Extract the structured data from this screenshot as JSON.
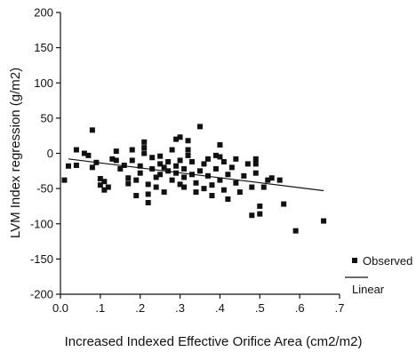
{
  "chart_data": {
    "type": "scatter",
    "xlabel": "Increased Indexed Effective Orifice Area (cm2/m2)",
    "ylabel": "LVM Index regression (g/m2)",
    "xlim": [
      0.0,
      0.7
    ],
    "ylim": [
      -200,
      200
    ],
    "x_ticks": [
      0.0,
      0.1,
      0.2,
      0.3,
      0.4,
      0.5,
      0.6,
      0.7
    ],
    "x_tick_labels": [
      "0.0",
      ".1",
      ".2",
      ".3",
      ".4",
      ".5",
      ".6",
      ".7"
    ],
    "y_ticks": [
      -200,
      -150,
      -100,
      -50,
      0,
      50,
      100,
      150,
      200
    ],
    "y_tick_labels": [
      "-200",
      "-150",
      "-100",
      "-50",
      "0",
      "50",
      "100",
      "150",
      "200"
    ],
    "legend": {
      "placement": "right",
      "entries": [
        "Observed",
        "Linear"
      ]
    },
    "series": [
      {
        "name": "Observed",
        "marker": "square",
        "points": [
          [
            0.01,
            -38
          ],
          [
            0.02,
            -18
          ],
          [
            0.04,
            5
          ],
          [
            0.04,
            -17
          ],
          [
            0.06,
            0
          ],
          [
            0.07,
            -3
          ],
          [
            0.08,
            -20
          ],
          [
            0.08,
            33
          ],
          [
            0.09,
            -13
          ],
          [
            0.1,
            -36
          ],
          [
            0.1,
            -45
          ],
          [
            0.11,
            -40
          ],
          [
            0.11,
            -52
          ],
          [
            0.12,
            -48
          ],
          [
            0.13,
            -8
          ],
          [
            0.14,
            3
          ],
          [
            0.14,
            -10
          ],
          [
            0.15,
            -22
          ],
          [
            0.16,
            -17
          ],
          [
            0.17,
            -35
          ],
          [
            0.17,
            -43
          ],
          [
            0.18,
            -10
          ],
          [
            0.18,
            5
          ],
          [
            0.19,
            -60
          ],
          [
            0.19,
            -38
          ],
          [
            0.2,
            -18
          ],
          [
            0.2,
            -28
          ],
          [
            0.21,
            0
          ],
          [
            0.21,
            8
          ],
          [
            0.21,
            16
          ],
          [
            0.22,
            -58
          ],
          [
            0.22,
            -70
          ],
          [
            0.22,
            -44
          ],
          [
            0.23,
            -22
          ],
          [
            0.23,
            -6
          ],
          [
            0.24,
            -48
          ],
          [
            0.24,
            -34
          ],
          [
            0.25,
            -15
          ],
          [
            0.25,
            -4
          ],
          [
            0.25,
            -30
          ],
          [
            0.26,
            -55
          ],
          [
            0.26,
            -20
          ],
          [
            0.27,
            -25
          ],
          [
            0.27,
            -12
          ],
          [
            0.28,
            5
          ],
          [
            0.28,
            -38
          ],
          [
            0.29,
            -18
          ],
          [
            0.29,
            20
          ],
          [
            0.29,
            -28
          ],
          [
            0.3,
            23
          ],
          [
            0.3,
            -44
          ],
          [
            0.3,
            -10
          ],
          [
            0.31,
            -34
          ],
          [
            0.31,
            -22
          ],
          [
            0.31,
            -48
          ],
          [
            0.32,
            18
          ],
          [
            0.32,
            5
          ],
          [
            0.32,
            -3
          ],
          [
            0.33,
            -12
          ],
          [
            0.33,
            -30
          ],
          [
            0.34,
            -55
          ],
          [
            0.34,
            -42
          ],
          [
            0.35,
            38
          ],
          [
            0.35,
            -25
          ],
          [
            0.36,
            -15
          ],
          [
            0.36,
            -50
          ],
          [
            0.37,
            -8
          ],
          [
            0.37,
            -32
          ],
          [
            0.38,
            -45
          ],
          [
            0.38,
            -60
          ],
          [
            0.39,
            -3
          ],
          [
            0.39,
            -22
          ],
          [
            0.4,
            12
          ],
          [
            0.4,
            -5
          ],
          [
            0.4,
            -38
          ],
          [
            0.41,
            -12
          ],
          [
            0.41,
            -52
          ],
          [
            0.42,
            -30
          ],
          [
            0.42,
            -65
          ],
          [
            0.43,
            -20
          ],
          [
            0.44,
            -8
          ],
          [
            0.44,
            -42
          ],
          [
            0.45,
            -55
          ],
          [
            0.46,
            -32
          ],
          [
            0.47,
            -15
          ],
          [
            0.48,
            -88
          ],
          [
            0.48,
            -48
          ],
          [
            0.49,
            -8
          ],
          [
            0.49,
            -28
          ],
          [
            0.49,
            -15
          ],
          [
            0.5,
            -75
          ],
          [
            0.5,
            -86
          ],
          [
            0.51,
            -48
          ],
          [
            0.52,
            -38
          ],
          [
            0.53,
            -35
          ],
          [
            0.55,
            -38
          ],
          [
            0.56,
            -72
          ],
          [
            0.59,
            -110
          ],
          [
            0.66,
            -96
          ]
        ]
      },
      {
        "name": "Linear",
        "line": [
          [
            0.02,
            -8
          ],
          [
            0.66,
            -53
          ]
        ]
      }
    ]
  }
}
